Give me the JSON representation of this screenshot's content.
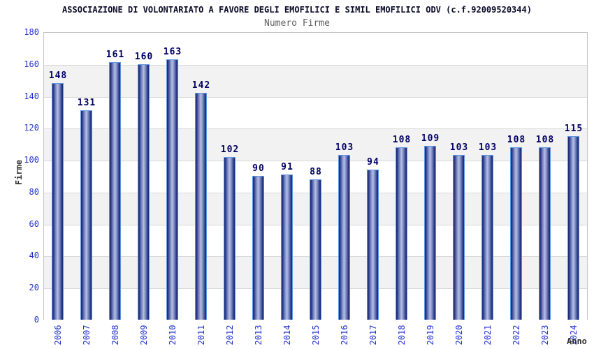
{
  "title": "ASSOCIAZIONE DI VOLONTARIATO A FAVORE DEGLI EMOFILICI E SIMIL EMOFILICI ODV (c.f.92009520344)",
  "subtitle": "Numero Firme",
  "chart_data": {
    "type": "bar",
    "title": "ASSOCIAZIONE DI VOLONTARIATO A FAVORE DEGLI EMOFILICI E SIMIL EMOFILICI ODV (c.f.92009520344)",
    "subtitle": "Numero Firme",
    "xlabel": "Anno",
    "ylabel": "Firme",
    "categories": [
      "2006",
      "2007",
      "2008",
      "2009",
      "2010",
      "2011",
      "2012",
      "2013",
      "2014",
      "2015",
      "2016",
      "2017",
      "2018",
      "2019",
      "2020",
      "2021",
      "2022",
      "2023",
      "2024"
    ],
    "values": [
      148,
      131,
      161,
      160,
      163,
      142,
      102,
      90,
      91,
      88,
      103,
      94,
      108,
      109,
      103,
      103,
      108,
      108,
      115
    ],
    "ylim": [
      0,
      180
    ],
    "ytick_step": 20,
    "grid": true,
    "legend": "none",
    "colors": {
      "bar_edge": "#1d2d7c",
      "bar_mid1": "#7c8ac4",
      "bar_mid2": "#b7bfe4",
      "bar_outline": "#5f96e0",
      "value_label": "#000066",
      "tick_label": "#2233cc",
      "band": "#f2f2f2",
      "gridline": "#d9d9d9",
      "plot_border": "#c4c4c4",
      "title": "#0a0a28",
      "subtitle": "#606060",
      "axis_label": "#333333"
    }
  }
}
